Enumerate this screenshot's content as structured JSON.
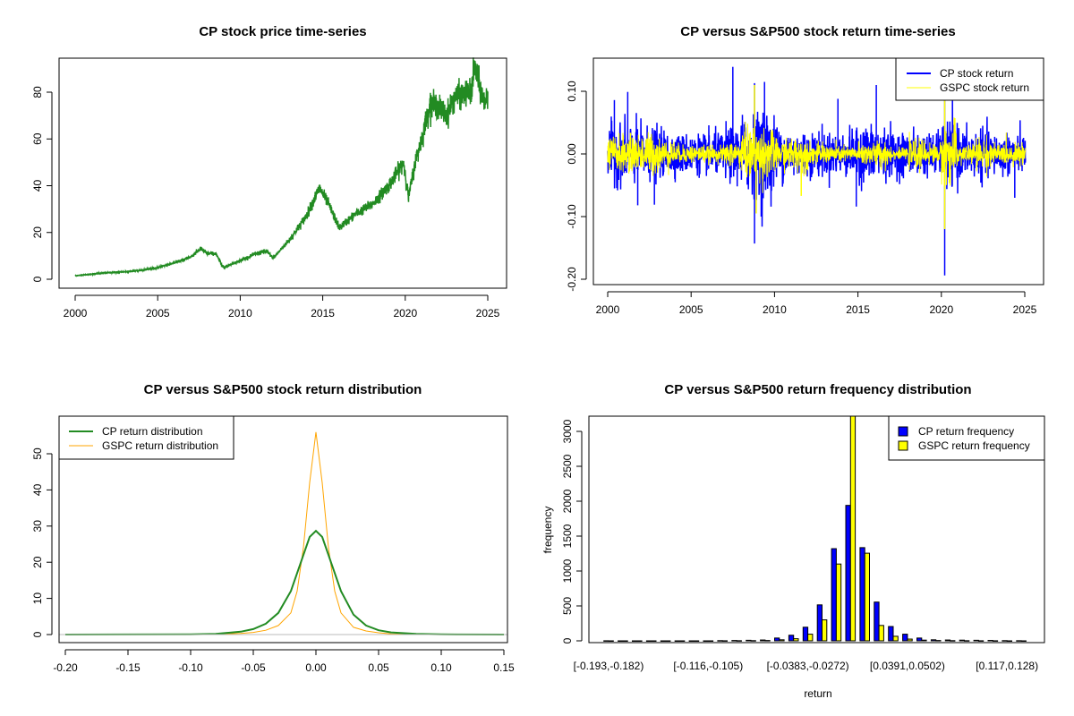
{
  "chart_data": [
    {
      "type": "line",
      "title": "CP stock price time-series",
      "xlabel": "",
      "ylabel": "",
      "xlim": [
        2000,
        2025
      ],
      "ylim": [
        0,
        91
      ],
      "xticks": [
        2000,
        2005,
        2010,
        2015,
        2020,
        2025
      ],
      "yticks": [
        0,
        20,
        40,
        60,
        80
      ],
      "color": "#228B22",
      "series": [
        {
          "name": "CP price",
          "x": [
            2000,
            2001,
            2002,
            2003,
            2004,
            2005,
            2006,
            2007,
            2007.6,
            2008,
            2008.5,
            2009,
            2010,
            2011,
            2011.6,
            2012,
            2013,
            2014,
            2014.8,
            2015.3,
            2016,
            2017,
            2018,
            2019,
            2019.9,
            2020.2,
            2020.6,
            2021,
            2021.5,
            2022,
            2022.5,
            2023,
            2024,
            2024.2,
            2024.8,
            2025
          ],
          "y": [
            1.5,
            2.2,
            2.8,
            3.2,
            3.8,
            5,
            7,
            9.5,
            13,
            11,
            11,
            5,
            8,
            11,
            12,
            9,
            17,
            27,
            39,
            33,
            22,
            28,
            32,
            40,
            50,
            35,
            50,
            60,
            75,
            74,
            70,
            78,
            80,
            91,
            75,
            80
          ]
        }
      ]
    },
    {
      "type": "line",
      "title": "CP versus S&P500 stock return time-series",
      "xlim": [
        2000,
        2025
      ],
      "ylim": [
        -0.2,
        0.15
      ],
      "xticks": [
        2000,
        2005,
        2010,
        2015,
        2020,
        2025
      ],
      "yticks": [
        "-0.20",
        "-0.10",
        "0.00",
        "0.10"
      ],
      "legend": {
        "position": "top-right",
        "entries": [
          "CP stock return",
          "GSPC stock return"
        ]
      },
      "series": [
        {
          "name": "CP stock return",
          "color": "#0000FF",
          "volatility_by_year": [
            0.022,
            0.022,
            0.02,
            0.017,
            0.015,
            0.015,
            0.016,
            0.02,
            0.03,
            0.035,
            0.02,
            0.018,
            0.017,
            0.016,
            0.017,
            0.022,
            0.02,
            0.016,
            0.016,
            0.016,
            0.025,
            0.018,
            0.018,
            0.016,
            0.015,
            0.015
          ],
          "extremes": [
            [
              2000.4,
              0.086
            ],
            [
              2001.2,
              0.099
            ],
            [
              2001.8,
              -0.082
            ],
            [
              2002.8,
              -0.081
            ],
            [
              2007.5,
              0.139
            ],
            [
              2008.8,
              0.113
            ],
            [
              2008.8,
              -0.143
            ],
            [
              2009.4,
              0.115
            ],
            [
              2009.2,
              -0.1
            ],
            [
              2013.8,
              0.088
            ],
            [
              2014.9,
              -0.084
            ],
            [
              2016.1,
              0.11
            ],
            [
              2020.2,
              -0.194
            ],
            [
              2020.2,
              0.085
            ],
            [
              2024.4,
              -0.07
            ]
          ]
        },
        {
          "name": "GSPC stock return",
          "color": "#FFFF00",
          "volatility_by_year": [
            0.014,
            0.014,
            0.016,
            0.011,
            0.007,
            0.007,
            0.006,
            0.01,
            0.02,
            0.02,
            0.011,
            0.013,
            0.008,
            0.007,
            0.006,
            0.009,
            0.01,
            0.004,
            0.011,
            0.008,
            0.021,
            0.008,
            0.012,
            0.008,
            0.008,
            0.009
          ],
          "extremes": [
            [
              2008.8,
              0.11
            ],
            [
              2008.9,
              -0.095
            ],
            [
              2011.6,
              -0.067
            ],
            [
              2020.2,
              -0.12
            ],
            [
              2020.2,
              0.09
            ]
          ]
        }
      ]
    },
    {
      "type": "line",
      "title": "CP versus S&P500 stock return distribution",
      "xlim": [
        -0.2,
        0.15
      ],
      "ylim": [
        0,
        57
      ],
      "xticks": [
        "-0.20",
        "-0.15",
        "-0.10",
        "-0.05",
        "0.00",
        "0.05",
        "0.10",
        "0.15"
      ],
      "yticks": [
        0,
        10,
        20,
        30,
        40,
        50
      ],
      "legend": {
        "position": "top-left",
        "entries": [
          "CP return distribution",
          "GSPC return distribution"
        ]
      },
      "series": [
        {
          "name": "CP return distribution",
          "color": "#228B22",
          "x": [
            -0.2,
            -0.1,
            -0.08,
            -0.06,
            -0.05,
            -0.04,
            -0.03,
            -0.02,
            -0.01,
            -0.005,
            0,
            0.005,
            0.01,
            0.02,
            0.03,
            0.04,
            0.05,
            0.06,
            0.08,
            0.1,
            0.15
          ],
          "y": [
            0,
            0.05,
            0.2,
            0.8,
            1.5,
            3,
            6,
            12,
            22,
            27,
            28.7,
            27,
            22,
            12,
            5.5,
            2.5,
            1.2,
            0.6,
            0.2,
            0.05,
            0
          ]
        },
        {
          "name": "GSPC return distribution",
          "color": "#FFA500",
          "x": [
            -0.2,
            -0.1,
            -0.06,
            -0.05,
            -0.04,
            -0.03,
            -0.02,
            -0.015,
            -0.01,
            -0.005,
            0,
            0.005,
            0.01,
            0.015,
            0.02,
            0.03,
            0.04,
            0.05,
            0.06,
            0.1,
            0.15
          ],
          "y": [
            0,
            0.05,
            0.3,
            0.6,
            1.2,
            2.5,
            6,
            12,
            24,
            42,
            56,
            42,
            24,
            12,
            6,
            2,
            1,
            0.5,
            0.2,
            0,
            0
          ]
        }
      ]
    },
    {
      "type": "bar",
      "title": "CP versus S&P500 return frequency distribution",
      "xlabel": "return",
      "ylabel": "frequency",
      "ylim": [
        0,
        3220
      ],
      "yticks": [
        0,
        500,
        1000,
        1500,
        2000,
        2500,
        3000
      ],
      "category_labels_shown": [
        [
          0,
          "[-0.193,-0.182)"
        ],
        [
          7,
          "[-0.116,-0.105)"
        ],
        [
          14,
          "[-0.0383,-0.0272)"
        ],
        [
          21,
          "[0.0391,0.0502)"
        ],
        [
          28,
          "[0.117,0.128)"
        ]
      ],
      "legend": {
        "position": "top-right",
        "entries": [
          "CP return frequency",
          "GSPC return frequency"
        ]
      },
      "series": [
        {
          "name": "CP return frequency",
          "color": "#0000FF",
          "values": [
            1,
            0,
            0,
            0,
            0,
            0,
            0,
            0,
            3,
            5,
            8,
            12,
            40,
            80,
            195,
            515,
            1320,
            1940,
            1335,
            555,
            205,
            95,
            40,
            15,
            12,
            10,
            8,
            6,
            3,
            2
          ]
        },
        {
          "name": "GSPC return frequency",
          "color": "#FFFF00",
          "values": [
            0,
            0,
            0,
            0,
            0,
            0,
            0,
            0,
            1,
            2,
            3,
            5,
            15,
            30,
            95,
            300,
            1100,
            3400,
            1255,
            220,
            65,
            25,
            10,
            5,
            3,
            2,
            1,
            1,
            0,
            0
          ]
        }
      ]
    }
  ]
}
